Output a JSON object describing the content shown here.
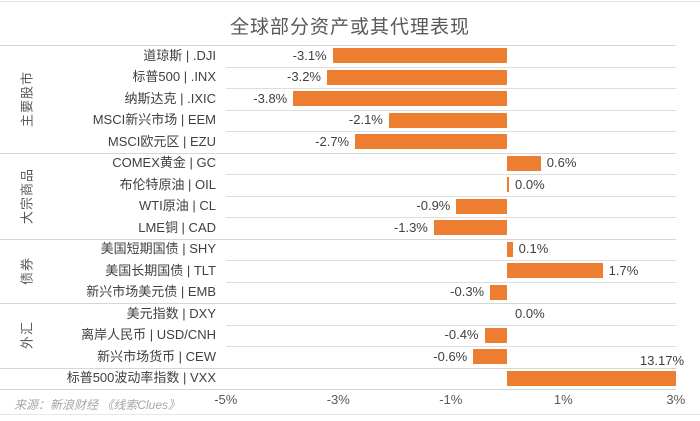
{
  "chart_data": {
    "type": "bar",
    "orientation": "horizontal",
    "title": "全球部分资产或其代理表现",
    "source": "来源：新浪财经 《线索Clues》",
    "bar_color": "#ED7D31",
    "xlim": [
      -5,
      3
    ],
    "x_ticks": [
      {
        "value": -5,
        "label": "-5%"
      },
      {
        "value": -3,
        "label": "-3%"
      },
      {
        "value": -1,
        "label": "-1%"
      },
      {
        "value": 1,
        "label": "1%"
      },
      {
        "value": 3,
        "label": "3%"
      }
    ],
    "grid": "row-separators",
    "legend_position": "none",
    "groups": [
      {
        "label": "主要股市",
        "count": 5
      },
      {
        "label": "大宗商品",
        "count": 4
      },
      {
        "label": "债券",
        "count": 3
      },
      {
        "label": "外汇",
        "count": 3
      },
      {
        "label": "",
        "count": 1
      }
    ],
    "rows": [
      {
        "category": "道琼斯 | .DJI",
        "value": -3.1,
        "label": "-3.1%"
      },
      {
        "category": "标普500 | .INX",
        "value": -3.2,
        "label": "-3.2%"
      },
      {
        "category": "纳斯达克 | .IXIC",
        "value": -3.8,
        "label": "-3.8%"
      },
      {
        "category": "MSCI新兴市场 | EEM",
        "value": -2.1,
        "label": "-2.1%"
      },
      {
        "category": "MSCI欧元区 | EZU",
        "value": -2.7,
        "label": "-2.7%"
      },
      {
        "category": "COMEX黄金 | GC",
        "value": 0.6,
        "label": "0.6%"
      },
      {
        "category": "布伦特原油 | OIL",
        "value": 0.0,
        "label": "0.0%",
        "zero_bar": true
      },
      {
        "category": "WTI原油 | CL",
        "value": -0.9,
        "label": "-0.9%"
      },
      {
        "category": "LME铜 | CAD",
        "value": -1.3,
        "label": "-1.3%"
      },
      {
        "category": "美国短期国债 | SHY",
        "value": 0.1,
        "label": "0.1%"
      },
      {
        "category": "美国长期国债 | TLT",
        "value": 1.7,
        "label": "1.7%"
      },
      {
        "category": "新兴市场美元债 | EMB",
        "value": -0.3,
        "label": "-0.3%"
      },
      {
        "category": "美元指数 | DXY",
        "value": 0.0,
        "label": "0.0%",
        "zero_bar": false
      },
      {
        "category": "离岸人民币 | USD/CNH",
        "value": -0.4,
        "label": "-0.4%"
      },
      {
        "category": "新兴市场货币 | CEW",
        "value": -0.6,
        "label": "-0.6%"
      },
      {
        "category": "标普500波动率指数 | VXX",
        "value": 13.17,
        "label": "13.17%",
        "label_above": true,
        "clipped": true
      }
    ]
  }
}
